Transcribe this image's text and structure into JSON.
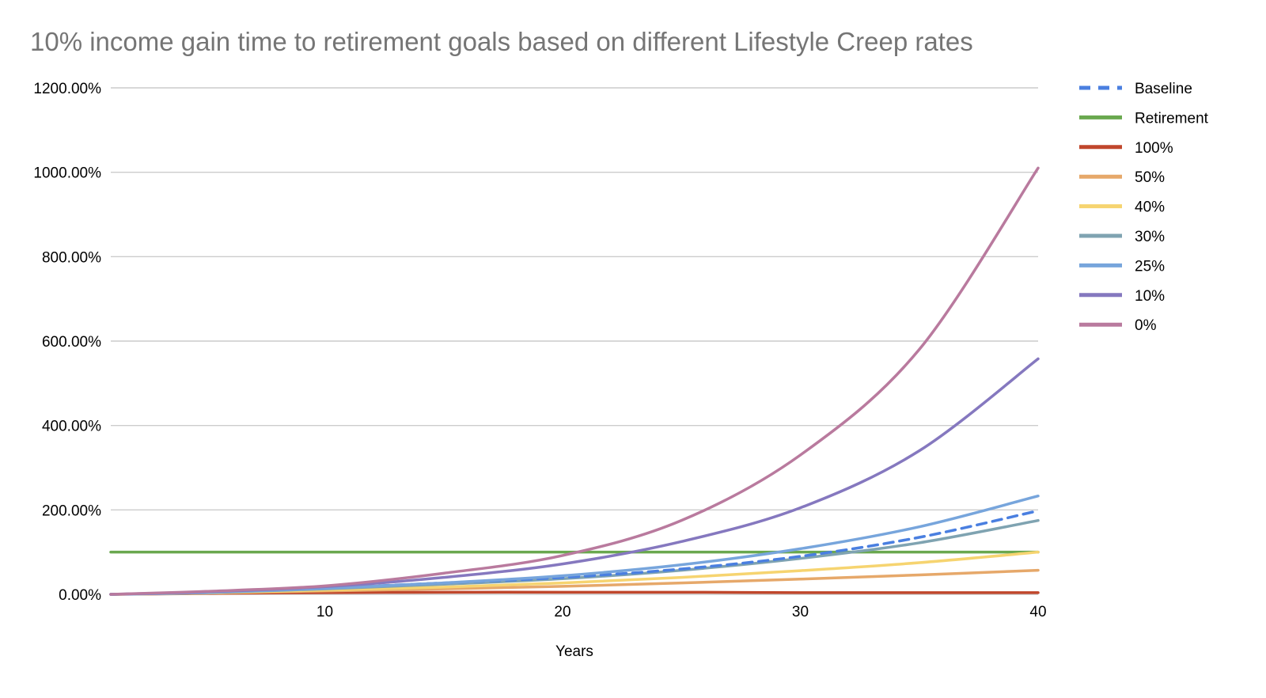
{
  "chart_data": {
    "type": "line",
    "title": "10% income gain time to retirement goals based on different Lifestyle Creep rates",
    "xlabel": "Years",
    "ylabel": "",
    "xlim": [
      1,
      40
    ],
    "ylim": [
      0,
      1200
    ],
    "x_ticks": [
      10,
      20,
      30,
      40
    ],
    "y_ticks": [
      0,
      200,
      400,
      600,
      800,
      1000,
      1200
    ],
    "y_tick_labels": [
      "0.00%",
      "200.00%",
      "400.00%",
      "600.00%",
      "800.00%",
      "1000.00%",
      "1200.00%"
    ],
    "grid": true,
    "legend_position": "right",
    "x": [
      1,
      5,
      10,
      15,
      20,
      25,
      30,
      35,
      40
    ],
    "series": [
      {
        "name": "Baseline",
        "color": "#4a7fe0",
        "dashed": true,
        "values": [
          0,
          5,
          15,
          27,
          40,
          60,
          90,
          135,
          198
        ]
      },
      {
        "name": "Retirement",
        "color": "#6aa84f",
        "dashed": false,
        "values": [
          100,
          100,
          100,
          100,
          100,
          100,
          100,
          100,
          100
        ]
      },
      {
        "name": "100%",
        "color": "#c0472c",
        "dashed": false,
        "values": [
          0,
          2,
          4,
          5,
          5,
          5,
          4,
          4,
          4
        ]
      },
      {
        "name": "50%",
        "color": "#e6a86a",
        "dashed": false,
        "values": [
          0,
          3,
          8,
          13,
          19,
          27,
          36,
          46,
          57
        ]
      },
      {
        "name": "40%",
        "color": "#f6d470",
        "dashed": false,
        "values": [
          0,
          3,
          10,
          17,
          27,
          40,
          56,
          75,
          100
        ]
      },
      {
        "name": "30%",
        "color": "#7fa3b1",
        "dashed": false,
        "values": [
          0,
          4,
          13,
          24,
          37,
          57,
          85,
          122,
          175
        ]
      },
      {
        "name": "25%",
        "color": "#77a5dc",
        "dashed": false,
        "values": [
          0,
          4,
          14,
          27,
          44,
          70,
          108,
          160,
          233
        ]
      },
      {
        "name": "10%",
        "color": "#8578bf",
        "dashed": false,
        "values": [
          0,
          6,
          18,
          40,
          72,
          125,
          205,
          340,
          558
        ]
      },
      {
        "name": "0%",
        "color": "#b97a9e",
        "dashed": false,
        "values": [
          0,
          7,
          20,
          50,
          92,
          175,
          330,
          580,
          1010
        ]
      }
    ]
  }
}
